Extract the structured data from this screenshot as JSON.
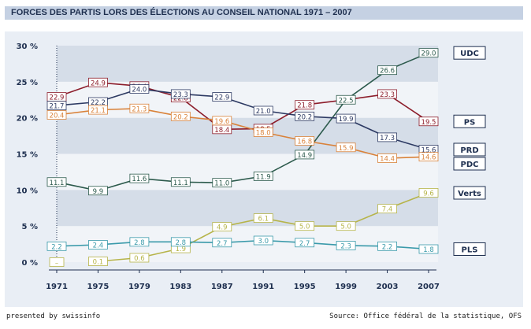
{
  "title": "FORCES DES PARTIS LORS DES ÉLECTIONS AU CONSEIL NATIONAL 1971 – 2007",
  "footer": {
    "presented_by": "presented by swissinfo",
    "source": "Source: Office fédéral de la statistique, OFS"
  },
  "colors": {
    "title_bar": "#c5d1e3",
    "panel_bg": "#e9eef5",
    "band_dark": "#d5dde8",
    "band_light": "#f1f4f8",
    "axis": "#1e2f4f"
  },
  "chart_data": {
    "type": "line",
    "x": [
      "1971",
      "1975",
      "1979",
      "1983",
      "1987",
      "1991",
      "1995",
      "1999",
      "2003",
      "2007"
    ],
    "y_ticks": [
      "0 %",
      "5 %",
      "10 %",
      "15 %",
      "20 %",
      "25 %",
      "30 %"
    ],
    "ylim": [
      0,
      30
    ],
    "grid": true,
    "legend_placement": "right",
    "series": [
      {
        "name": "UDC",
        "color": "#2c5a4c",
        "values": [
          11.1,
          9.9,
          11.6,
          11.1,
          11.0,
          11.9,
          14.9,
          22.5,
          26.6,
          29.0
        ],
        "labels": [
          "11.1",
          "9.9",
          "11.6",
          "11.1",
          "11.0",
          "11.9",
          "14.9",
          "22.5",
          "26.6",
          "29.0"
        ]
      },
      {
        "name": "PS",
        "color": "#8c1c2a",
        "values": [
          22.9,
          24.9,
          24.4,
          22.8,
          18.4,
          18.5,
          21.8,
          22.5,
          23.3,
          19.5
        ],
        "labels": [
          "22.9",
          "24.9",
          "24.4",
          "22.8",
          "18.4",
          "18.5",
          "21.8",
          "",
          "23.3",
          "19.5"
        ]
      },
      {
        "name": "PRD",
        "color": "#2d3a63",
        "values": [
          21.7,
          22.2,
          24.0,
          23.3,
          22.9,
          21.0,
          20.2,
          19.9,
          17.3,
          15.6
        ],
        "labels": [
          "21.7",
          "22.2",
          "24.0",
          "23.3",
          "22.9",
          "21.0",
          "20.2",
          "19.9",
          "17.3",
          "15.6"
        ]
      },
      {
        "name": "PDC",
        "color": "#d9823a",
        "values": [
          20.4,
          21.1,
          21.3,
          20.2,
          19.6,
          18.0,
          16.8,
          15.9,
          14.4,
          14.6
        ],
        "labels": [
          "20.4",
          "21.1",
          "21.3",
          "20.2",
          "19.6",
          "18.0",
          "16.8",
          "15.9",
          "14.4",
          "14.6"
        ]
      },
      {
        "name": "Verts",
        "color": "#b6b449",
        "values": [
          null,
          0.1,
          0.6,
          1.9,
          4.9,
          6.1,
          5.0,
          5.0,
          7.4,
          9.6
        ],
        "labels": [
          "–",
          "0.1",
          "0.6",
          "1.9",
          "4.9",
          "6.1",
          "5.0",
          "5.0",
          "7.4",
          "9.6"
        ]
      },
      {
        "name": "PLS",
        "color": "#3a9aaa",
        "values": [
          2.2,
          2.4,
          2.8,
          2.8,
          2.7,
          3.0,
          2.7,
          2.3,
          2.2,
          1.8
        ],
        "labels": [
          "2.2",
          "2.4",
          "2.8",
          "2.8",
          "2.7",
          "3.0",
          "2.7",
          "2.3",
          "2.2",
          "1.8"
        ]
      }
    ]
  }
}
